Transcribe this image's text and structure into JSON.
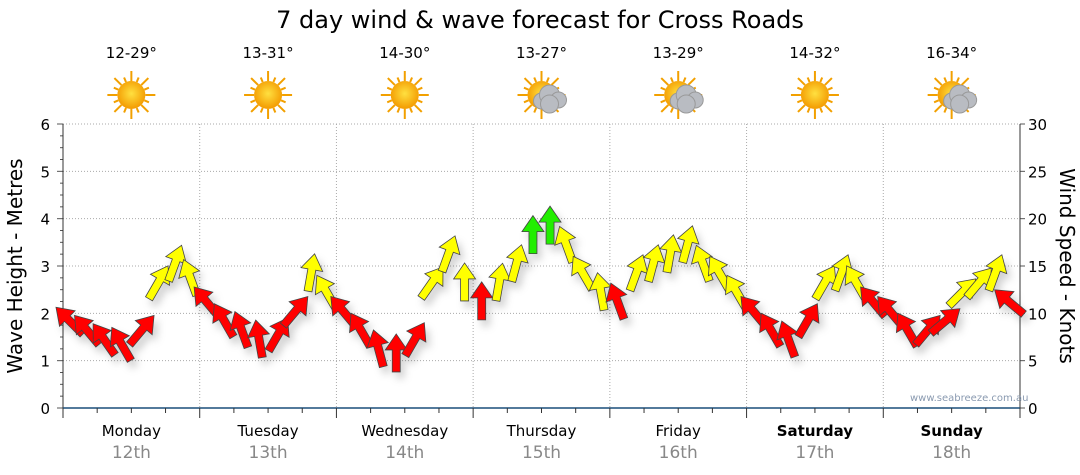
{
  "chart_data": {
    "type": "wind-wave-forecast",
    "title": "7 day wind & wave forecast for Cross Roads",
    "ylabel_left": "Wave Height - Metres",
    "ylabel_right": "Wind Speed - Knots",
    "ylim_left": [
      0,
      6
    ],
    "ylim_right": [
      0,
      30
    ],
    "left_ticks": [
      "0",
      "1",
      "2",
      "3",
      "4",
      "5",
      "6"
    ],
    "right_ticks": [
      "0",
      "5",
      "10",
      "15",
      "20",
      "25",
      "30"
    ],
    "watermark": "www.seabreeze.com.au",
    "days": [
      {
        "name": "Monday",
        "date": "12th",
        "temp": "12-29°",
        "icon": "sunny",
        "bold": false
      },
      {
        "name": "Tuesday",
        "date": "13th",
        "temp": "13-31°",
        "icon": "sunny",
        "bold": false
      },
      {
        "name": "Wednesday",
        "date": "14th",
        "temp": "14-30°",
        "icon": "sunny",
        "bold": false
      },
      {
        "name": "Thursday",
        "date": "15th",
        "temp": "13-27°",
        "icon": "partly-cloudy",
        "bold": false
      },
      {
        "name": "Friday",
        "date": "16th",
        "temp": "13-29°",
        "icon": "partly-cloudy",
        "bold": false
      },
      {
        "name": "Saturday",
        "date": "17th",
        "temp": "14-32°",
        "icon": "sunny",
        "bold": true
      },
      {
        "name": "Sunday",
        "date": "18th",
        "temp": "16-34°",
        "icon": "partly-cloudy",
        "bold": true
      }
    ],
    "wind_knots": [
      9,
      8,
      7,
      6.5,
      8,
      13,
      15,
      13.5,
      11,
      9,
      8,
      7,
      7.5,
      10,
      14,
      12,
      10,
      8,
      6,
      5.5,
      7,
      13,
      16,
      13,
      11,
      13,
      15,
      18,
      19,
      17,
      14,
      12,
      11,
      14,
      15,
      16,
      17,
      15,
      14,
      12,
      10,
      8,
      7,
      9,
      13,
      14,
      13,
      11,
      10,
      8,
      8,
      9,
      12,
      13,
      14,
      11
    ],
    "wind_direction_deg": [
      315,
      320,
      325,
      330,
      40,
      30,
      20,
      340,
      320,
      330,
      340,
      350,
      30,
      40,
      10,
      330,
      320,
      330,
      345,
      0,
      30,
      35,
      20,
      0,
      0,
      10,
      15,
      0,
      0,
      340,
      330,
      350,
      340,
      20,
      15,
      10,
      15,
      340,
      330,
      330,
      320,
      330,
      340,
      30,
      30,
      20,
      330,
      320,
      320,
      330,
      40,
      50,
      45,
      40,
      20,
      310
    ],
    "colors": {
      "light": "#ff0000",
      "moderate": "#ffff00",
      "strong": "#22ee00"
    }
  }
}
